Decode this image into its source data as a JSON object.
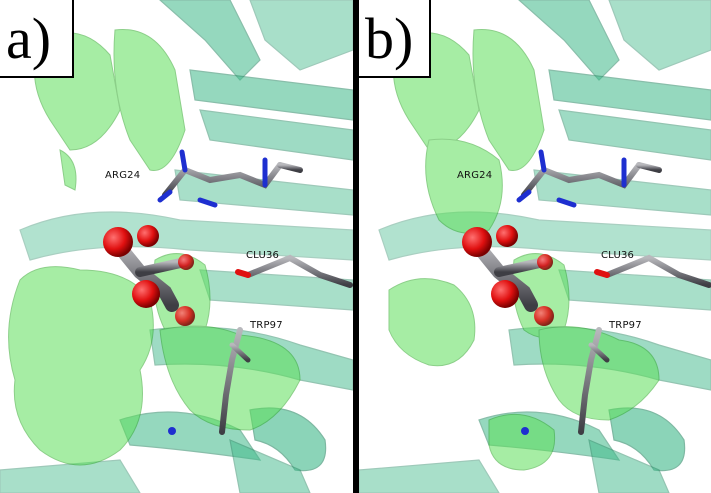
{
  "panels": [
    {
      "label": "a)",
      "residues": {
        "arg": "ARG24",
        "glu": "CLU36",
        "trp": "TRP97"
      }
    },
    {
      "label": "b)",
      "residues": {
        "arg": "ARG24",
        "glu": "CLU36",
        "trp": "TRP97"
      }
    }
  ],
  "colors": {
    "protein_ribbon": "#3fb98a",
    "density_surface": "#5ee05a",
    "carbon_stick": "#7a7a80",
    "oxygen": "#e01010",
    "nitrogen": "#1e2fd0",
    "divider": "#000000"
  }
}
